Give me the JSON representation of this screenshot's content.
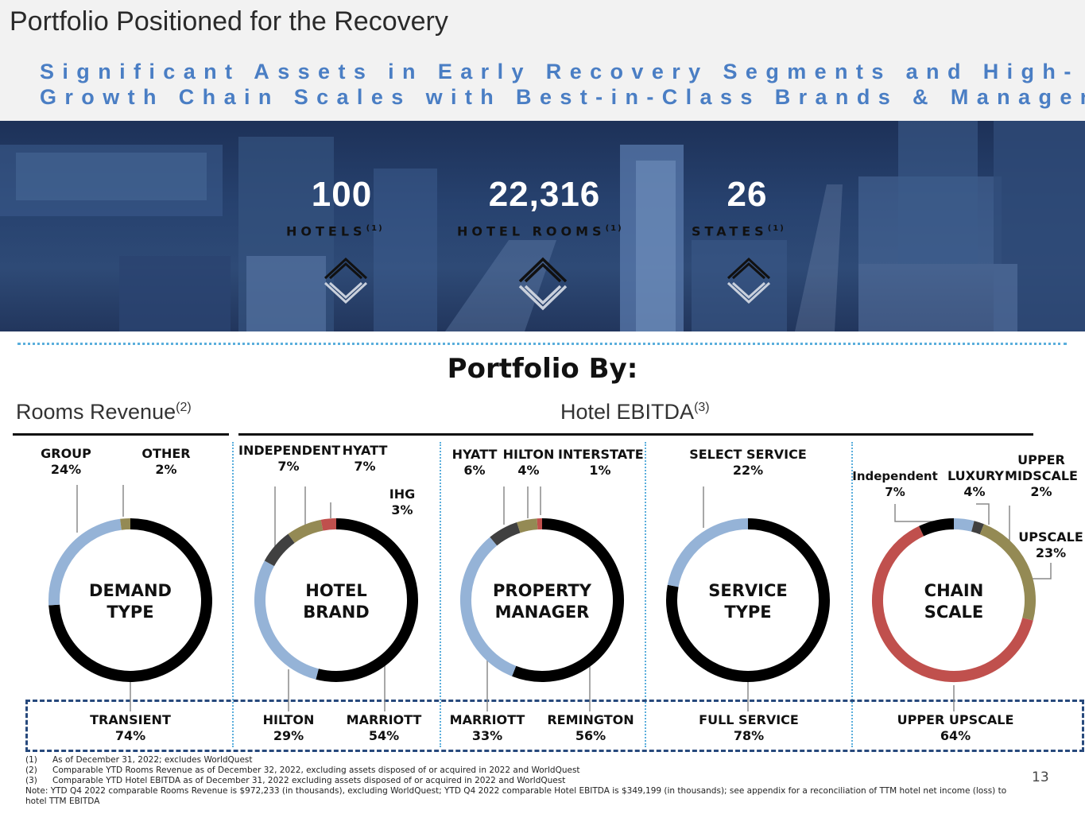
{
  "title": "Portfolio Positioned for the Recovery",
  "subtitle": {
    "line1": "Significant Assets in Early Recovery Segments and High-",
    "line2": "Growth Chain Scales with Best-in-Class Brands & Managers"
  },
  "stats": [
    {
      "value": "100",
      "label": "HOTELS",
      "note": "(1)"
    },
    {
      "value": "22,316",
      "label": "HOTEL ROOMS",
      "note": "(1)"
    },
    {
      "value": "26",
      "label": "STATES",
      "note": "(1)"
    }
  ],
  "portfolio_by": "Portfolio By:",
  "rooms_revenue": {
    "label": "Rooms Revenue",
    "note": "(2)"
  },
  "hotel_ebitda": {
    "label": "Hotel EBITDA",
    "note": "(3)"
  },
  "colors": {
    "black": "#000000",
    "blue": "#95b3d7",
    "olive": "#948a54",
    "dark_gray": "#404040",
    "red": "#c0504d"
  },
  "chart_data": [
    {
      "type": "pie",
      "title": "DEMAND TYPE",
      "center": {
        "line1": "DEMAND",
        "line2": "TYPE"
      },
      "slices": [
        {
          "name": "TRANSIENT",
          "value": 74,
          "label": "74%",
          "color": "#000000"
        },
        {
          "name": "GROUP",
          "value": 24,
          "label": "24%",
          "color": "#95b3d7"
        },
        {
          "name": "OTHER",
          "value": 2,
          "label": "2%",
          "color": "#948a54"
        }
      ]
    },
    {
      "type": "pie",
      "title": "HOTEL BRAND",
      "center": {
        "line1": "HOTEL",
        "line2": "BRAND"
      },
      "slices": [
        {
          "name": "MARRIOTT",
          "value": 54,
          "label": "54%",
          "color": "#000000"
        },
        {
          "name": "HILTON",
          "value": 29,
          "label": "29%",
          "color": "#95b3d7"
        },
        {
          "name": "INDEPENDENT",
          "value": 7,
          "label": "7%",
          "color": "#404040"
        },
        {
          "name": "HYATT",
          "value": 7,
          "label": "7%",
          "color": "#948a54"
        },
        {
          "name": "IHG",
          "value": 3,
          "label": "3%",
          "color": "#c0504d"
        }
      ]
    },
    {
      "type": "pie",
      "title": "PROPERTY MANAGER",
      "center": {
        "line1": "PROPERTY",
        "line2": "MANAGER"
      },
      "slices": [
        {
          "name": "REMINGTON",
          "value": 56,
          "label": "56%",
          "color": "#000000"
        },
        {
          "name": "MARRIOTT",
          "value": 33,
          "label": "33%",
          "color": "#95b3d7"
        },
        {
          "name": "HYATT",
          "value": 6,
          "label": "6%",
          "color": "#404040"
        },
        {
          "name": "HILTON",
          "value": 4,
          "label": "4%",
          "color": "#948a54"
        },
        {
          "name": "INTERSTATE",
          "value": 1,
          "label": "1%",
          "color": "#c0504d"
        }
      ]
    },
    {
      "type": "pie",
      "title": "SERVICE TYPE",
      "center": {
        "line1": "SERVICE",
        "line2": "TYPE"
      },
      "slices": [
        {
          "name": "FULL SERVICE",
          "value": 78,
          "label": "78%",
          "color": "#000000"
        },
        {
          "name": "SELECT SERVICE",
          "value": 22,
          "label": "22%",
          "color": "#95b3d7"
        }
      ]
    },
    {
      "type": "pie",
      "title": "CHAIN SCALE",
      "center": {
        "line1": "CHAIN",
        "line2": "SCALE"
      },
      "slices": [
        {
          "name": "LUXURY",
          "value": 4,
          "label": "4%",
          "color": "#95b3d7"
        },
        {
          "name": "UPPER MIDSCALE",
          "value": 2,
          "label": "2%",
          "color": "#404040"
        },
        {
          "name": "UPSCALE",
          "value": 23,
          "label": "23%",
          "color": "#948a54"
        },
        {
          "name": "UPPER UPSCALE",
          "value": 64,
          "label": "64%",
          "color": "#c0504d"
        },
        {
          "name": "Independent",
          "value": 7,
          "label": "7%",
          "color": "#000000"
        }
      ]
    }
  ],
  "labels": {
    "group": "GROUP",
    "group_pct": "24%",
    "other": "OTHER",
    "other_pct": "2%",
    "transient": "TRANSIENT",
    "transient_pct": "74%",
    "independent": "INDEPENDENT",
    "independent_pct": "7%",
    "hyatt": "HYATT",
    "hyatt_pct": "7%",
    "ihg": "IHG",
    "ihg_pct": "3%",
    "hilton": "HILTON",
    "hilton_pct": "29%",
    "marriott": "MARRIOTT",
    "marriott_pct": "54%",
    "pm_hyatt": "HYATT",
    "pm_hyatt_pct": "6%",
    "pm_hilton": "HILTON",
    "pm_hilton_pct": "4%",
    "pm_interstate": "INTERSTATE",
    "pm_interstate_pct": "1%",
    "pm_marriott": "MARRIOTT",
    "pm_marriott_pct": "33%",
    "pm_remington": "REMINGTON",
    "pm_remington_pct": "56%",
    "select_service": "SELECT SERVICE",
    "select_service_pct": "22%",
    "full_service": "FULL SERVICE",
    "full_service_pct": "78%",
    "cs_independent": "Independent",
    "cs_independent_pct": "7%",
    "luxury": "LUXURY",
    "luxury_pct": "4%",
    "upper": "UPPER",
    "midscale": "MIDSCALE",
    "upper_midscale_pct": "2%",
    "upscale": "UPSCALE",
    "upscale_pct": "23%",
    "upper_upscale": "UPPER UPSCALE",
    "upper_upscale_pct": "64%"
  },
  "footnotes": [
    {
      "num": "(1)",
      "text": "As of December 31, 2022; excludes WorldQuest"
    },
    {
      "num": "(2)",
      "text": "Comparable YTD Rooms Revenue as of December 32, 2022, excluding assets disposed of or acquired in 2022 and WorldQuest"
    },
    {
      "num": "(3)",
      "text": "Comparable YTD Hotel EBITDA as of December 31, 2022 excluding assets disposed of or acquired in 2022 and WorldQuest"
    }
  ],
  "note": "Note: YTD Q4 2022 comparable Rooms Revenue is $972,233 (in thousands), excluding WorldQuest; YTD Q4 2022 comparable Hotel EBITDA is $349,199 (in thousands); see appendix for a reconciliation of TTM hotel net income (loss) to hotel TTM EBITDA",
  "page_number": "13"
}
